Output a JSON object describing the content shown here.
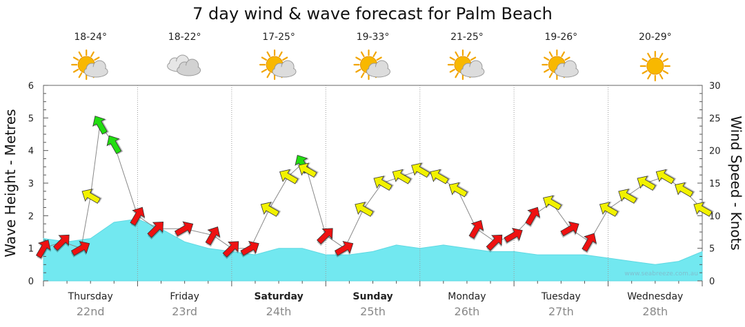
{
  "chart_data": {
    "type": "area",
    "title": "7 day wind & wave forecast for Palm Beach",
    "left_axis": {
      "label": "Wave Height - Metres",
      "range": [
        0,
        6
      ],
      "ticks": [
        0,
        1,
        2,
        3,
        4,
        5,
        6
      ]
    },
    "right_axis": {
      "label": "Wind Speed - Knots",
      "range": [
        0,
        30
      ],
      "ticks": [
        0,
        5,
        10,
        15,
        20,
        25,
        30
      ]
    },
    "days": [
      {
        "name": "Thursday",
        "date": "22nd",
        "temp": "18-24°",
        "icon": "partly-cloudy-icon",
        "bold": false
      },
      {
        "name": "Friday",
        "date": "23rd",
        "temp": "18-22°",
        "icon": "cloudy-icon",
        "bold": false
      },
      {
        "name": "Saturday",
        "date": "24th",
        "temp": "17-25°",
        "icon": "partly-cloudy-icon",
        "bold": true
      },
      {
        "name": "Sunday",
        "date": "25th",
        "temp": "19-33°",
        "icon": "partly-cloudy-icon",
        "bold": true
      },
      {
        "name": "Monday",
        "date": "26th",
        "temp": "21-25°",
        "icon": "partly-cloudy-icon",
        "bold": false
      },
      {
        "name": "Tuesday",
        "date": "27th",
        "temp": "19-26°",
        "icon": "partly-cloudy-icon",
        "bold": false
      },
      {
        "name": "Wednesday",
        "date": "28th",
        "temp": "20-29°",
        "icon": "sunny-icon",
        "bold": false
      }
    ],
    "wave_height": {
      "x_days": [
        0,
        0.25,
        0.5,
        0.75,
        1.0,
        1.25,
        1.5,
        1.75,
        2.0,
        2.25,
        2.5,
        2.75,
        3.0,
        3.25,
        3.5,
        3.75,
        4.0,
        4.25,
        4.5,
        4.75,
        5.0,
        5.25,
        5.5,
        5.75,
        6.0,
        6.25,
        6.5,
        6.75,
        7.0
      ],
      "values": [
        1.3,
        1.2,
        1.3,
        1.8,
        1.9,
        1.6,
        1.2,
        1.0,
        0.9,
        0.8,
        1.0,
        1.0,
        0.8,
        0.8,
        0.9,
        1.1,
        1.0,
        1.1,
        1.0,
        0.9,
        0.9,
        0.8,
        0.8,
        0.8,
        0.7,
        0.6,
        0.5,
        0.6,
        0.9
      ]
    },
    "wind": {
      "x_days": [
        0,
        0.2,
        0.4,
        0.5,
        0.6,
        0.75,
        1.0,
        1.2,
        1.5,
        1.8,
        2.0,
        2.2,
        2.4,
        2.6,
        2.75,
        2.8,
        3.0,
        3.2,
        3.4,
        3.6,
        3.8,
        4.0,
        4.2,
        4.4,
        4.6,
        4.8,
        5.0,
        5.2,
        5.4,
        5.6,
        5.8,
        6.0,
        6.2,
        6.4,
        6.6,
        6.8,
        7.0
      ],
      "knots": [
        5,
        6,
        5,
        13,
        24,
        21,
        10,
        8,
        8,
        7,
        5,
        5,
        11,
        16,
        18,
        17,
        7,
        5,
        11,
        15,
        16,
        17,
        16,
        14,
        8,
        6,
        7,
        10,
        12,
        8,
        6,
        11,
        13,
        15,
        16,
        14,
        11
      ],
      "speed_colors": {
        "low": "#ee1111",
        "mid": "#f2f200",
        "high": "#22dd11"
      }
    },
    "watermark": "www.seabreeze.com.au",
    "colors": {
      "wave_fill": "#72e8f0",
      "grid": "#999999"
    }
  }
}
